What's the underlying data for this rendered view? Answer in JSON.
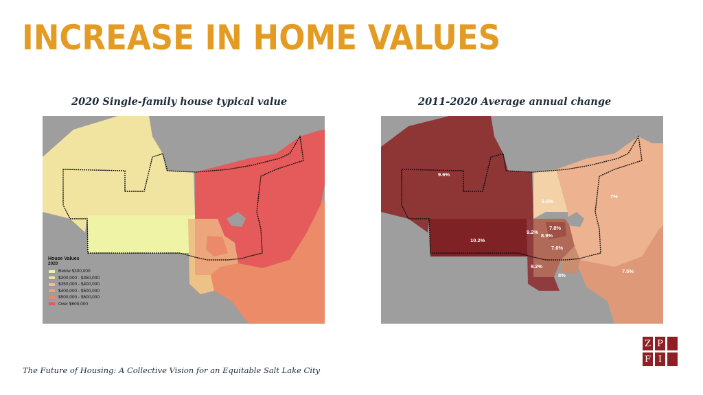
{
  "title": "INCREASE IN HOME VALUES",
  "left_map": {
    "caption": "2020 Single-family house typical value",
    "legend": {
      "title": "House Values",
      "subtitle": "2020",
      "items": [
        {
          "label": "Below $300,000",
          "color": "#EFF3A5"
        },
        {
          "label": "$300,000 - $350,000",
          "color": "#F1E3A0"
        },
        {
          "label": "$350,000 - $400,000",
          "color": "#EDC287"
        },
        {
          "label": "$400,000 - $500,000",
          "color": "#EDA67C"
        },
        {
          "label": "$500,000 - $600,000",
          "color": "#EA8A6A"
        },
        {
          "label": "Over $600,000",
          "color": "#E55A5B"
        }
      ]
    }
  },
  "right_map": {
    "caption": "2011-2020 Average annual change",
    "labels": [
      "9.6%",
      "10.2%",
      "6.6%",
      "7%",
      "9.2%",
      "7.8%",
      "8.9%",
      "7.6%",
      "9.2%",
      "8%",
      "7.5%"
    ]
  },
  "footer": "The Future of Housing: A Collective Vision for an Equitable Salt Lake City",
  "logo": {
    "letters": [
      "Z",
      "P",
      "F",
      "I"
    ],
    "color": "#8E2025"
  }
}
